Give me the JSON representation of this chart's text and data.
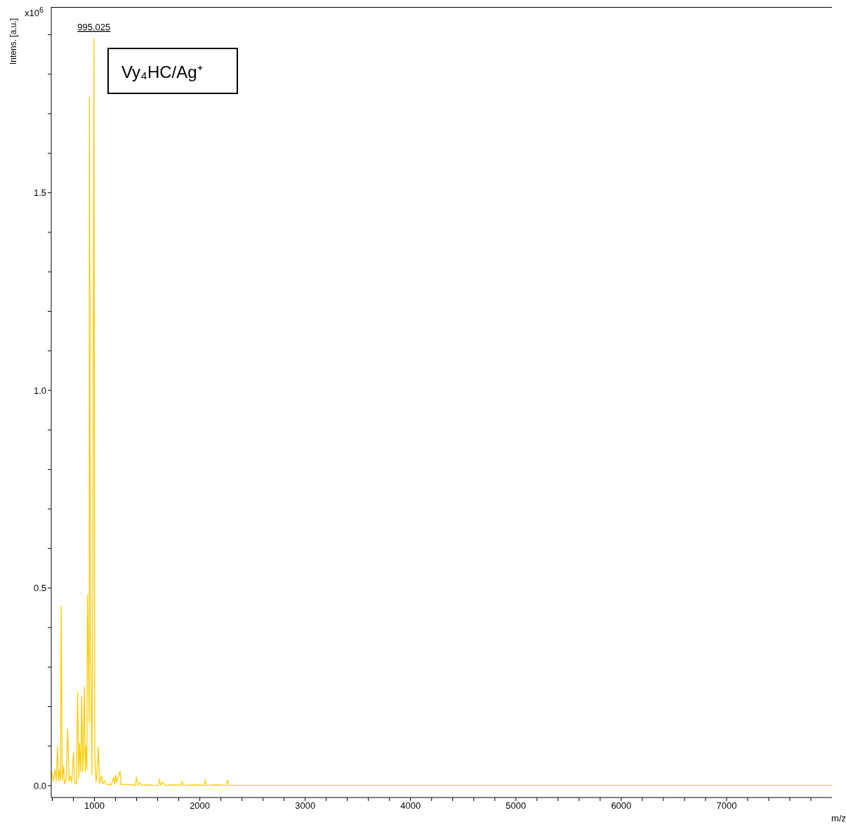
{
  "chart_data": {
    "type": "line",
    "xlabel": "m/z",
    "ylabel": "Intens. [a.u.]",
    "annotations": [
      "x10$^{6}$",
      "Vy₄HC/Ag⁺",
      {
        "text": "995.025",
        "x": 995.025,
        "y": 1.89
      }
    ],
    "x": [
      592,
      595,
      610,
      626,
      637,
      650,
      658,
      669,
      677,
      685,
      694,
      707,
      715,
      733,
      746,
      759,
      772,
      785,
      801,
      812,
      829,
      840,
      851,
      858,
      869,
      880,
      888,
      895,
      904,
      912,
      921,
      928,
      934,
      943,
      950,
      952,
      963,
      976,
      985,
      995.025,
      1003,
      1015,
      1026,
      1037,
      1048,
      1066,
      1077,
      1096,
      1114,
      1158,
      1184,
      1192,
      1201,
      1210,
      1243,
      1252,
      1290,
      1330,
      1387,
      1398,
      1410,
      1431,
      1445,
      1500,
      1560,
      1606,
      1617,
      1630,
      1650,
      1665,
      1750,
      1820,
      1832,
      1845,
      1950,
      2044,
      2051,
      2060,
      2160,
      2252,
      2263,
      2275,
      2500,
      3000,
      3500,
      4000,
      4500,
      5000,
      5500,
      6000,
      6500,
      7000,
      7500,
      8000
    ],
    "series": [
      {
        "color": "#ffcc00",
        "values": [
          0.03,
          0.035,
          0.012,
          0.041,
          0.012,
          0.099,
          0.012,
          0.04,
          0.012,
          0.454,
          0.015,
          0.05,
          0.005,
          0.018,
          0.143,
          0.012,
          0.025,
          0.008,
          0.084,
          0.006,
          0.004,
          0.238,
          0.018,
          0.108,
          0.035,
          0.224,
          0.035,
          0.083,
          0.251,
          0.035,
          0.1,
          0.041,
          0.483,
          0.31,
          0.16,
          1.742,
          0.385,
          0.028,
          0.556,
          1.89,
          0.08,
          0.009,
          0.035,
          0.098,
          0.005,
          0.025,
          0.005,
          0.013,
          0.003,
          0.002,
          0.021,
          0.003,
          0.027,
          0.009,
          0.037,
          0.003,
          0.003,
          0.003,
          0.001,
          0.022,
          0.001,
          0.007,
          0.001,
          0.002,
          0.001,
          0.001,
          0.017,
          0.001,
          0.009,
          0.001,
          0.002,
          0.001,
          0.011,
          0.001,
          0.002,
          0.001,
          0.015,
          0.001,
          0.002,
          0.001,
          0.014,
          0.001,
          0.001,
          0.001,
          0.001,
          0.001,
          0.001,
          0.001,
          0.001,
          0.001,
          0.001,
          0.001,
          0.001,
          0.001
        ]
      }
    ],
    "xlim": [
      590,
      8000
    ],
    "ylim": [
      -0.03,
      1.97
    ],
    "xticks": [
      {
        "value": 600,
        "label": null
      },
      {
        "value": 800,
        "label": null
      },
      1000,
      {
        "value": 1200,
        "label": null
      },
      {
        "value": 1400,
        "label": null
      },
      {
        "value": 1600,
        "label": null
      },
      {
        "value": 1800,
        "label": null
      },
      2000,
      {
        "value": 2200,
        "label": null
      },
      {
        "value": 2400,
        "label": null
      },
      {
        "value": 2600,
        "label": null
      },
      {
        "value": 2800,
        "label": null
      },
      3000,
      {
        "value": 3200,
        "label": null
      },
      {
        "value": 3400,
        "label": null
      },
      {
        "value": 3600,
        "label": null
      },
      {
        "value": 3800,
        "label": null
      },
      4000,
      {
        "value": 4200,
        "label": null
      },
      {
        "value": 4400,
        "label": null
      },
      {
        "value": 4600,
        "label": null
      },
      {
        "value": 4800,
        "label": null
      },
      5000,
      {
        "value": 5200,
        "label": null
      },
      {
        "value": 5400,
        "label": null
      },
      {
        "value": 5600,
        "label": null
      },
      {
        "value": 5800,
        "label": null
      },
      6000,
      {
        "value": 6200,
        "label": null
      },
      {
        "value": 6400,
        "label": null
      },
      {
        "value": 6600,
        "label": null
      },
      {
        "value": 6800,
        "label": null
      },
      7000,
      {
        "value": 7200,
        "label": null
      },
      {
        "value": 7400,
        "label": null
      },
      {
        "value": 7600,
        "label": null
      },
      {
        "value": 7800,
        "label": null
      }
    ],
    "yticks": [
      {
        "value": 0,
        "label": "0.0"
      },
      {
        "value": 0.1,
        "label": null
      },
      {
        "value": 0.2,
        "label": null
      },
      {
        "value": 0.3,
        "label": null
      },
      {
        "value": 0.4,
        "label": null
      },
      0.5,
      {
        "value": 0.6,
        "label": null
      },
      {
        "value": 0.7,
        "label": null
      },
      {
        "value": 0.8,
        "label": null
      },
      {
        "value": 0.9,
        "label": null
      },
      {
        "value": 1,
        "label": "1.0"
      },
      {
        "value": 1.1,
        "label": null
      },
      {
        "value": 1.2,
        "label": null
      },
      {
        "value": 1.3,
        "label": null
      },
      {
        "value": 1.4,
        "label": null
      },
      1.5,
      {
        "value": 1.6,
        "label": null
      },
      {
        "value": 1.7,
        "label": null
      },
      {
        "value": 1.8,
        "label": null
      },
      {
        "value": 1.9,
        "label": null
      }
    ],
    "grid": false
  }
}
